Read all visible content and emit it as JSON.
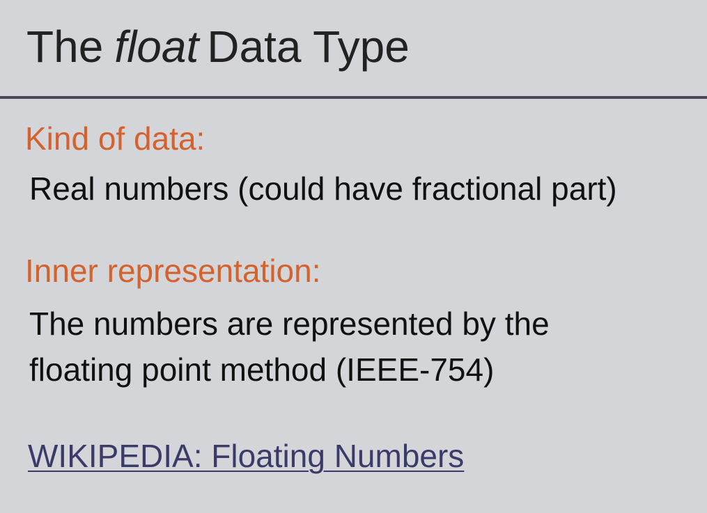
{
  "slide": {
    "title_prefix": "The",
    "title_emph": "float",
    "title_suffix": "Data Type",
    "kind_heading": "Kind of data:",
    "kind_text": "Real numbers (could have fractional part)",
    "repr_heading": "Inner representation:",
    "repr_line1": "The numbers are represented by the",
    "repr_line2": "floating point method (IEEE-754)",
    "link_text": "WIKIPEDIA: Floating Numbers"
  },
  "colors": {
    "background": "#d4d5d8",
    "heading": "#d4622e",
    "link": "#3b3b6a",
    "divider": "#4a4456"
  }
}
